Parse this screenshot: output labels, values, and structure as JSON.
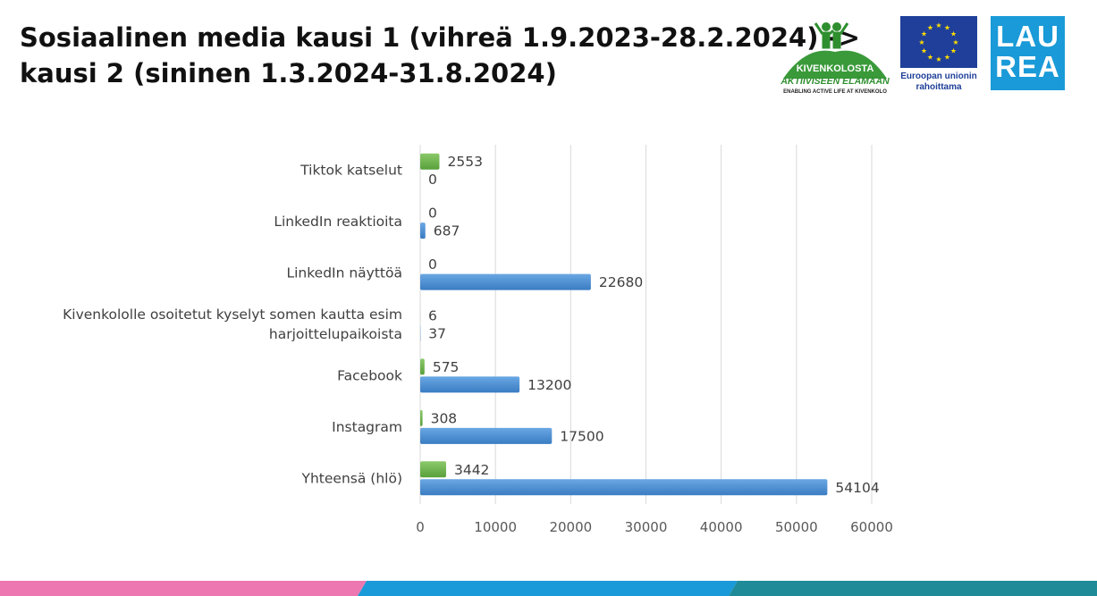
{
  "title": {
    "line1": "Sosiaalinen media kausi 1 (vihreä 1.9.2023-28.2.2024) ->",
    "line2": "kausi 2 (sininen 1.3.2024-31.8.2024)"
  },
  "logos": {
    "kivenkolosta": {
      "name": "KIVENKOLOSTA",
      "tagline": "AKTIIVISEEN ELÄMÄÄN",
      "subline": "ENABLING ACTIVE LIFE AT KIVENKOLO"
    },
    "eu": {
      "caption_line1": "Euroopan unionin",
      "caption_line2": "rahoittama"
    },
    "laurea": {
      "line1": "LAU",
      "line2": "REA"
    }
  },
  "colors": {
    "green": "#6ab04c",
    "blue": "#4a8fd4",
    "pink": "#ec77b1",
    "cyan": "#1a9ad8",
    "teal": "#1f8b98",
    "eu_blue": "#1f3f9a",
    "star": "#ffdd00"
  },
  "chart_data": {
    "type": "bar",
    "orientation": "horizontal",
    "categories": [
      "Tiktok katselut",
      "LinkedIn reaktioita",
      "LinkedIn näyttöä",
      "Kivenkololle osoitetut kyselyt somen kautta esim harjoittelupaikoista",
      "Facebook",
      "Instagram",
      "Yhteensä (hlö)"
    ],
    "category_lines": [
      [
        "Tiktok katselut"
      ],
      [
        "LinkedIn reaktioita"
      ],
      [
        "LinkedIn näyttöä"
      ],
      [
        "Kivenkololle osoitetut kyselyt somen kautta esim",
        "harjoittelupaikoista"
      ],
      [
        "Facebook"
      ],
      [
        "Instagram"
      ],
      [
        "Yhteensä (hlö)"
      ]
    ],
    "series": [
      {
        "color": "#6ab04c",
        "values": [
          2553,
          0,
          0,
          6,
          575,
          308,
          3442
        ]
      },
      {
        "color": "#4a8fd4",
        "values": [
          0,
          687,
          22680,
          37,
          13200,
          17500,
          54104
        ]
      }
    ],
    "xlim": [
      0,
      60000
    ],
    "xticks": [
      0,
      10000,
      20000,
      30000,
      40000,
      50000,
      60000
    ],
    "grid": true,
    "legend": "none",
    "data_labels": true
  }
}
